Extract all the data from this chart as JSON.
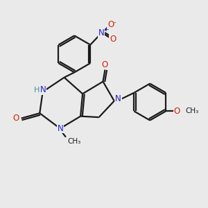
{
  "bg_color": "#eaeaea",
  "bond_color": "#1a1a1a",
  "N_color": "#2222cc",
  "O_color": "#cc2200",
  "H_color": "#4a9090",
  "figsize": [
    3.0,
    3.0
  ],
  "dpi": 100,
  "xlim": [
    0,
    10
  ],
  "ylim": [
    0,
    10
  ]
}
